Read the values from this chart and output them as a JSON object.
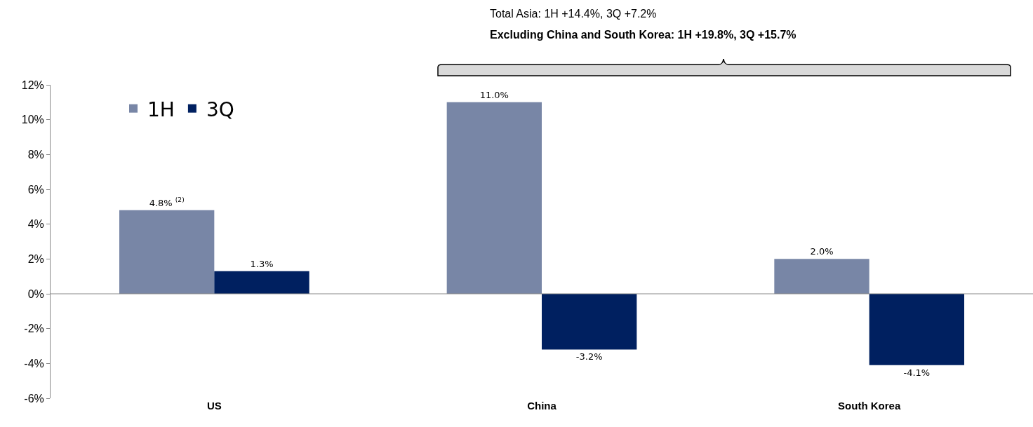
{
  "chart_data": {
    "type": "bar",
    "categories": [
      "US",
      "China",
      "South Korea"
    ],
    "series": [
      {
        "name": "1H",
        "color": "#7886a6",
        "values": [
          4.8,
          11.0,
          2.0
        ],
        "value_labels": [
          "4.8% $^{(2)}$",
          "11.0%",
          "2.0%"
        ]
      },
      {
        "name": "3Q",
        "color": "#002060",
        "values": [
          1.3,
          -3.2,
          -4.1
        ],
        "value_labels": [
          "1.3%",
          "-3.2%",
          "-4.1%"
        ]
      }
    ],
    "ylim": [
      -6,
      12
    ],
    "yticks": [
      {
        "value": -6,
        "label": "-6%"
      },
      {
        "value": -4,
        "label": "-4%"
      },
      {
        "value": -2,
        "label": "-2%"
      },
      {
        "value": 0,
        "label": "0%"
      },
      {
        "value": 2,
        "label": "2%"
      },
      {
        "value": 4,
        "label": "4%"
      },
      {
        "value": 6,
        "label": "6%"
      },
      {
        "value": 8,
        "label": "8%"
      },
      {
        "value": 10,
        "label": "10%"
      },
      {
        "value": 12,
        "label": "12%"
      }
    ],
    "grid": false,
    "legend": "top left",
    "ref_lines": [
      {
        "axis": "y",
        "value": 0,
        "color": "#888888"
      }
    ],
    "annotations": [
      "Total Asia: 1H +14.4%, 3Q +7.2%",
      "Excluding China and South Korea: 1H +19.8%, 3Q +15.7%"
    ]
  }
}
